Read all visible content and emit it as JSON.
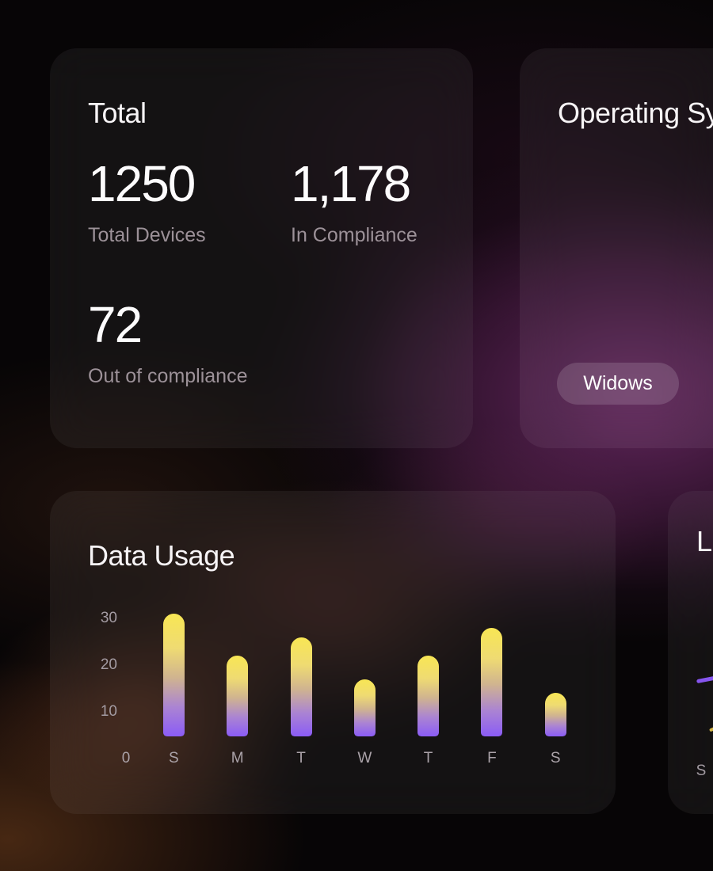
{
  "cards": {
    "total": {
      "title": "Total",
      "stats": [
        {
          "value": "1250",
          "label": "Total Devices"
        },
        {
          "value": "1,178",
          "label": "In Compliance"
        },
        {
          "value": "72",
          "label": "Out of compliance"
        }
      ]
    },
    "operating_systems": {
      "title": "Operating Systems",
      "badge_label": "Widows"
    },
    "data_usage": {
      "title": "Data Usage"
    },
    "partial_right": {
      "title": "Lo",
      "first_x_label": "S"
    }
  },
  "chart_data": [
    {
      "type": "bar",
      "title": "Data Usage",
      "categories": [
        "S",
        "M",
        "T",
        "W",
        "T",
        "F",
        "S"
      ],
      "values": [
        31,
        22,
        26,
        17,
        22,
        28,
        14
      ],
      "y_ticks": [
        10,
        20,
        30
      ],
      "origin_label": "0",
      "ylim": [
        0,
        33
      ],
      "xlabel": "",
      "ylabel": "",
      "grid": false,
      "bar_color_top": "#f8e654",
      "bar_color_bottom": "#8b5cf6"
    },
    {
      "type": "line",
      "title": "Lo",
      "visible_x_labels": [
        "S"
      ],
      "line_color": "#8655ee",
      "secondary_line_color": "#e8c84f"
    }
  ],
  "colors": {
    "background": "#070506",
    "glow_purple": "#9e3c96",
    "glow_orange": "#c86e2d",
    "card_fill": "rgba(255,255,255,0.055)",
    "pill_fill": "rgba(255,255,255,0.14)",
    "text_primary": "#f7f4f6",
    "text_secondary": "#9c9198",
    "axis_label": "#a39ba2",
    "accent_purple": "#8b5cf6",
    "accent_yellow": "#f8e654"
  }
}
